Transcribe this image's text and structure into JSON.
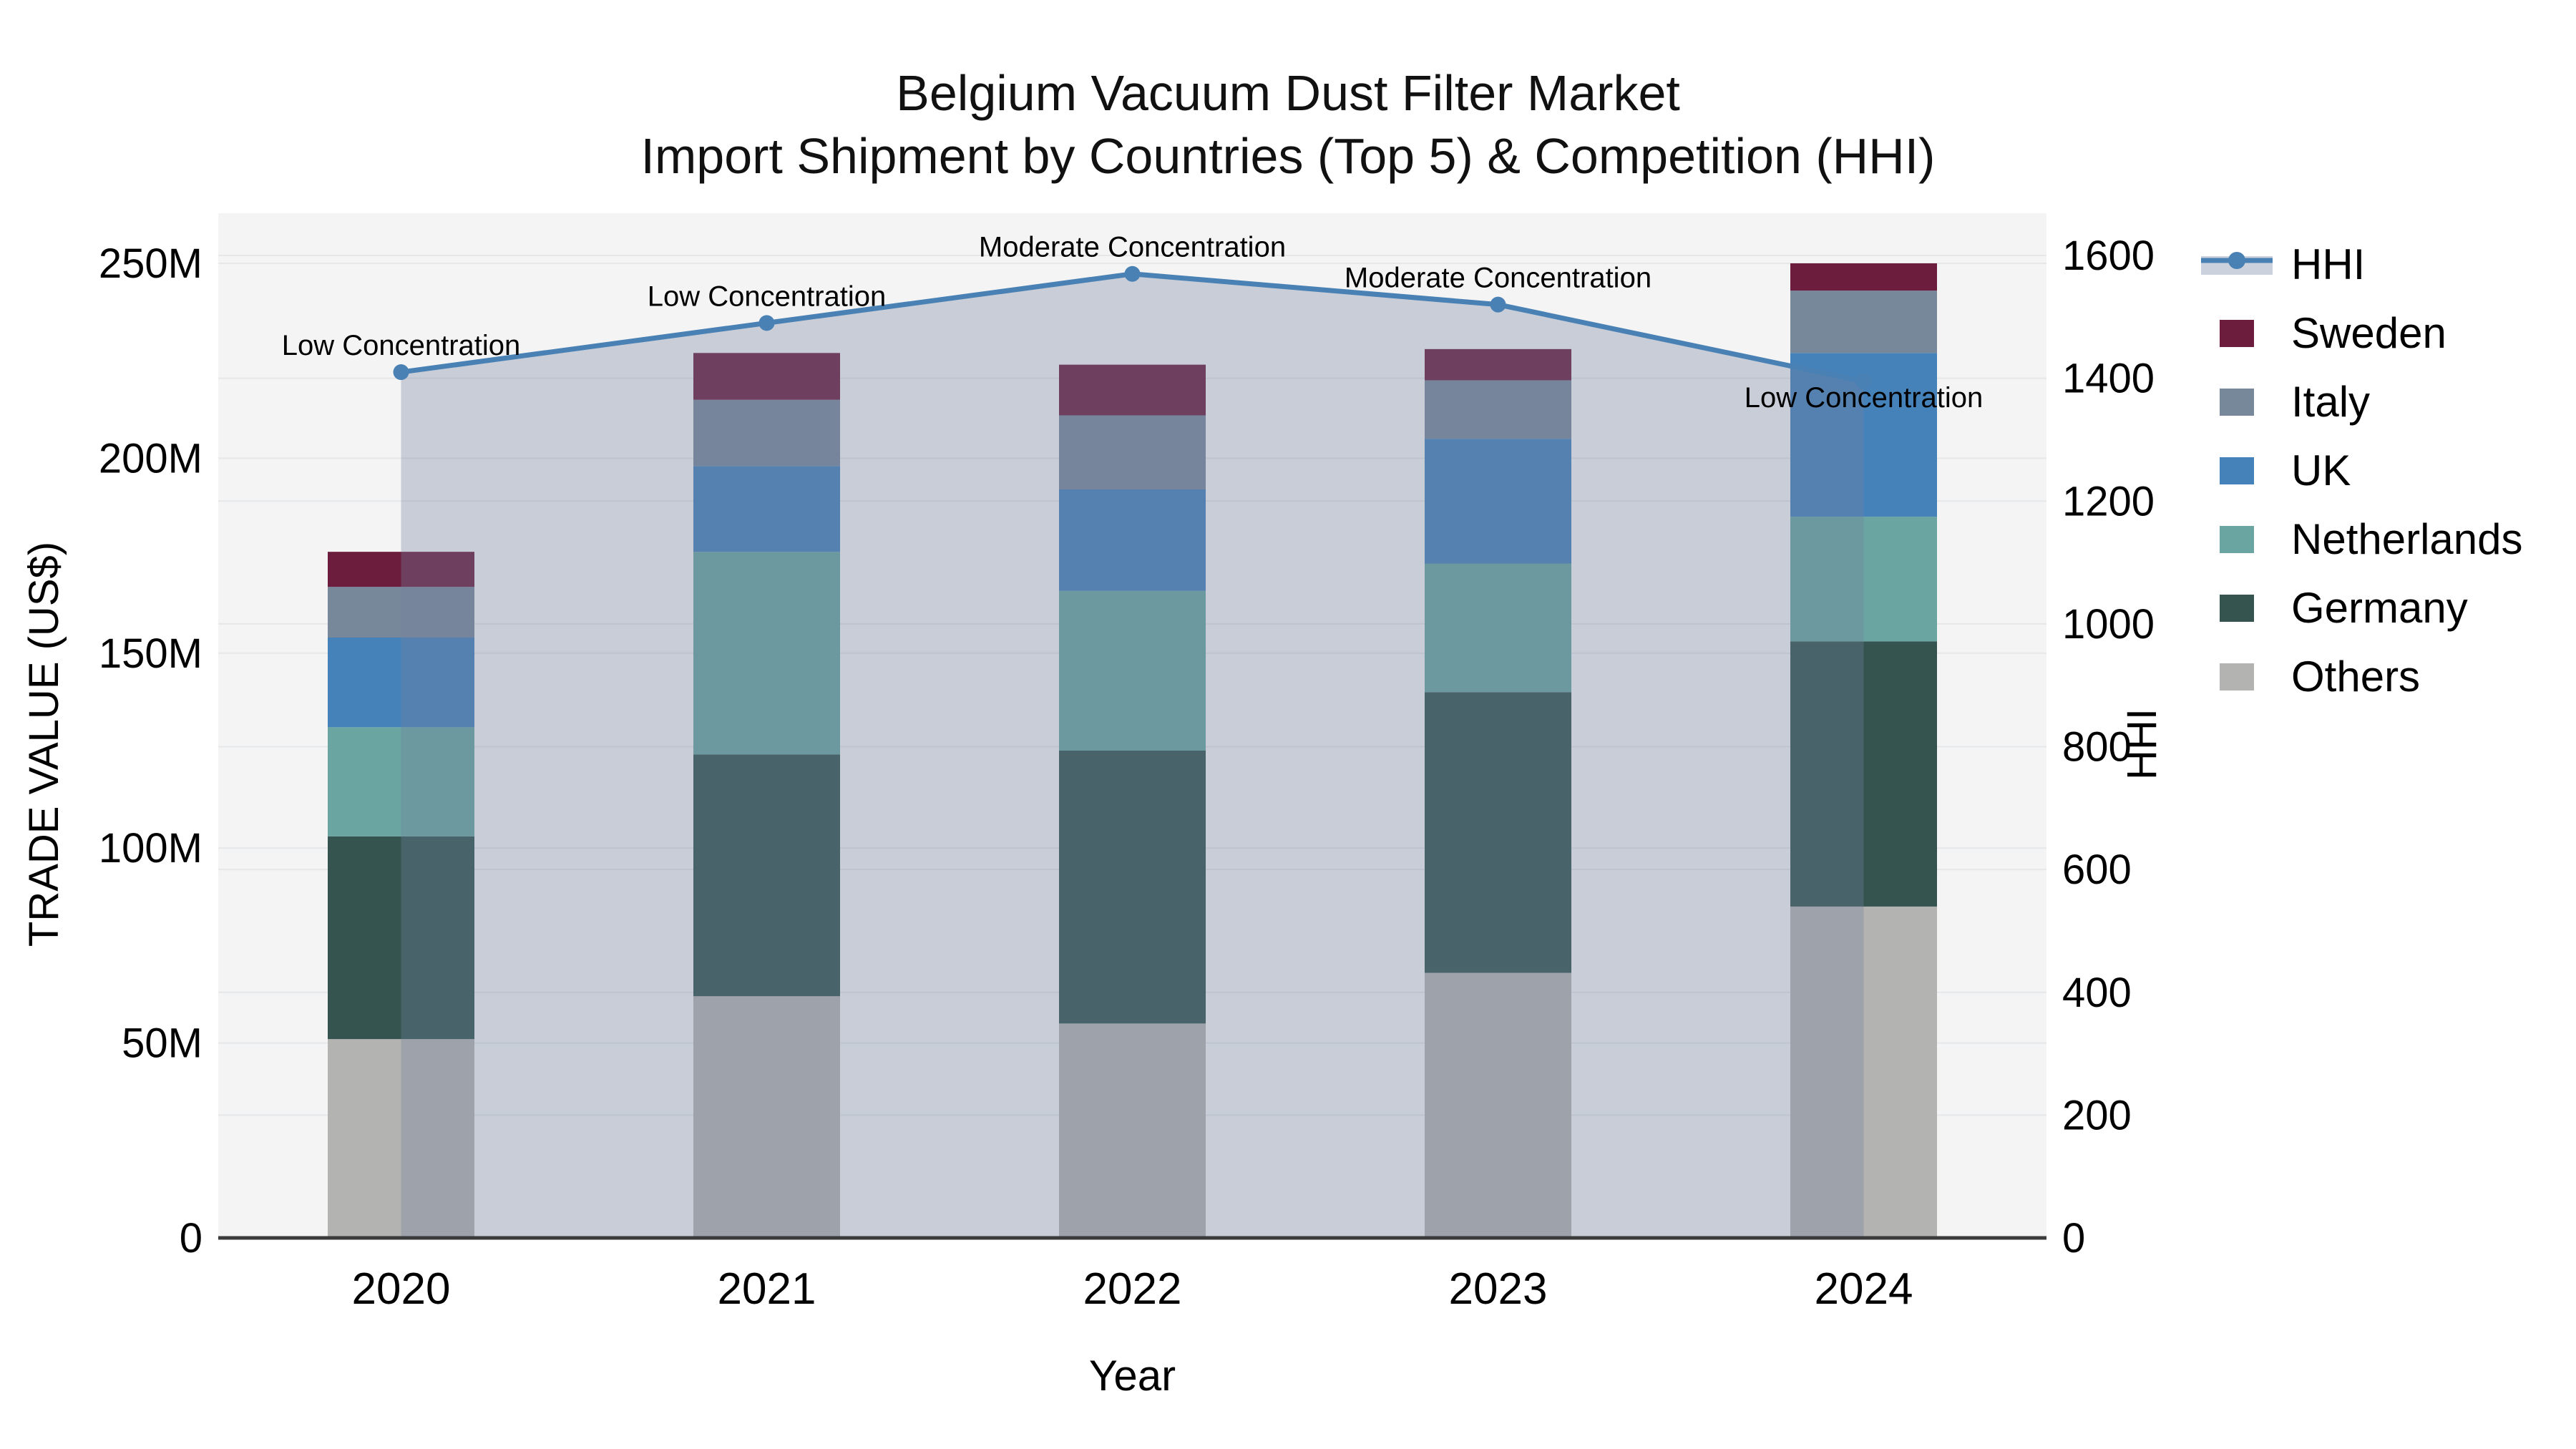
{
  "title": {
    "line1": "Belgium Vacuum Dust Filter Market",
    "line2": "Import Shipment by Countries (Top 5) & Competition (HHI)"
  },
  "axes": {
    "left_title": "TRADE VALUE (US$)",
    "right_title": "HHI",
    "x_title": "Year",
    "left_ticks": [
      {
        "label": "0",
        "value": 0
      },
      {
        "label": "50M",
        "value": 50
      },
      {
        "label": "100M",
        "value": 100
      },
      {
        "label": "150M",
        "value": 150
      },
      {
        "label": "200M",
        "value": 200
      },
      {
        "label": "250M",
        "value": 250
      }
    ],
    "right_ticks": [
      {
        "label": "0",
        "value": 0
      },
      {
        "label": "200",
        "value": 200
      },
      {
        "label": "400",
        "value": 400
      },
      {
        "label": "600",
        "value": 600
      },
      {
        "label": "800",
        "value": 800
      },
      {
        "label": "1000",
        "value": 1000
      },
      {
        "label": "1200",
        "value": 1200
      },
      {
        "label": "1400",
        "value": 1400
      },
      {
        "label": "1600",
        "value": 1600
      }
    ]
  },
  "chart_data": {
    "type": "bar",
    "subtype": "stacked-bar-with-line",
    "title": "Belgium Vacuum Dust Filter Market — Import Shipment by Countries (Top 5) & Competition (HHI)",
    "xlabel": "Year",
    "ylabel_left": "TRADE VALUE (US$)",
    "ylabel_right": "HHI",
    "categories": [
      "2020",
      "2021",
      "2022",
      "2023",
      "2024"
    ],
    "units": "Millions US$",
    "left_axis_range": [
      0,
      263
    ],
    "right_axis_range": [
      0,
      1669
    ],
    "grid": true,
    "legend_position": "upper-right-outside",
    "series": [
      {
        "name": "Others",
        "color": "#b3b3b2",
        "values": [
          51,
          62,
          55,
          68,
          85
        ]
      },
      {
        "name": "Germany",
        "color": "#355450",
        "values": [
          52,
          62,
          70,
          72,
          68
        ]
      },
      {
        "name": "Netherlands",
        "color": "#6aa5a1",
        "values": [
          28,
          52,
          41,
          33,
          32
        ]
      },
      {
        "name": "UK",
        "color": "#4582ba",
        "values": [
          23,
          22,
          26,
          32,
          42
        ]
      },
      {
        "name": "Italy",
        "color": "#78889b",
        "values": [
          13,
          17,
          19,
          15,
          16
        ]
      },
      {
        "name": "Sweden",
        "color": "#6c1d3d",
        "values": [
          9,
          12,
          13,
          8,
          7
        ]
      }
    ],
    "bar_totals": [
      176,
      227,
      224,
      228,
      250
    ],
    "line_series": {
      "name": "HHI",
      "axis": "right",
      "color": "#4a81b4",
      "area_fill_color": "#72809e",
      "area_fill_opacity": 0.34,
      "values": [
        1410,
        1490,
        1570,
        1520,
        1395
      ]
    },
    "annotations": [
      {
        "category": "2020",
        "text": "Low Concentration",
        "placement": "above"
      },
      {
        "category": "2021",
        "text": "Low Concentration",
        "placement": "above"
      },
      {
        "category": "2022",
        "text": "Moderate Concentration",
        "placement": "above"
      },
      {
        "category": "2023",
        "text": "Moderate Concentration",
        "placement": "above"
      },
      {
        "category": "2024",
        "text": "Low Concentration",
        "placement": "below"
      }
    ]
  },
  "legend": {
    "items": [
      {
        "label": "HHI",
        "type": "line",
        "color": "#4a81b4",
        "band_color": "#ccd2dd"
      },
      {
        "label": "Sweden",
        "type": "patch",
        "color": "#6c1d3d"
      },
      {
        "label": "Italy",
        "type": "patch",
        "color": "#78889b"
      },
      {
        "label": "UK",
        "type": "patch",
        "color": "#4582ba"
      },
      {
        "label": "Netherlands",
        "type": "patch",
        "color": "#6aa5a1"
      },
      {
        "label": "Germany",
        "type": "patch",
        "color": "#355450"
      },
      {
        "label": "Others",
        "type": "patch",
        "color": "#b3b3b2"
      }
    ]
  },
  "style": {
    "plot_bg": "#f4f4f5",
    "grid_color": "#e5e7e9",
    "axis_line_color": "#3b3b3b",
    "text_color": "#000000"
  }
}
